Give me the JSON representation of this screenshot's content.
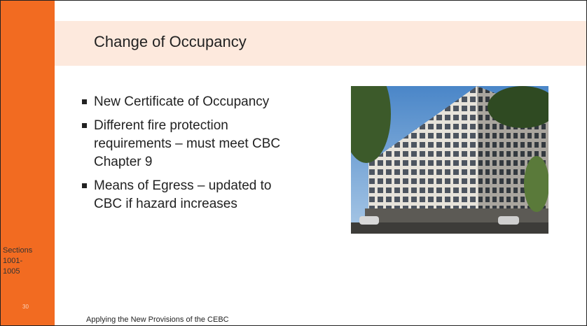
{
  "slide": {
    "title": "Change of Occupancy",
    "bullets": [
      {
        "lines": [
          "New Certificate of Occupancy"
        ]
      },
      {
        "lines": [
          "Different fire protection",
          "requirements – must meet  CBC",
          "Chapter 9"
        ]
      },
      {
        "lines": [
          "Means of Egress – updated to",
          "CBC if hazard increases"
        ]
      }
    ],
    "sidebar_note": [
      "Sections",
      "1001-",
      "1005"
    ],
    "slide_number": "30",
    "footer": "Applying the New Provisions of the CEBC"
  }
}
